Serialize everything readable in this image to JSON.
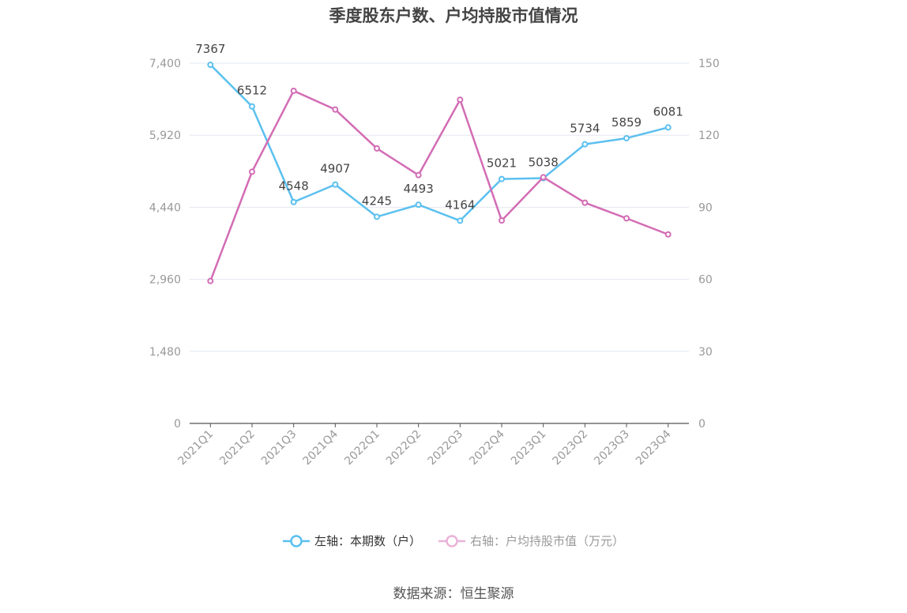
{
  "chart_data": {
    "type": "line",
    "title": "季度股东户数、户均持股市值情况",
    "categories": [
      "2021Q1",
      "2021Q2",
      "2021Q3",
      "2021Q4",
      "2022Q1",
      "2022Q2",
      "2022Q3",
      "2022Q4",
      "2023Q1",
      "2023Q2",
      "2023Q3",
      "2023Q4"
    ],
    "y_left": {
      "ylim": [
        0,
        7400
      ],
      "ticks": [
        0,
        1480,
        2960,
        4440,
        5920,
        7400
      ],
      "tick_labels": [
        "0",
        "1,480",
        "2,960",
        "4,440",
        "5,920",
        "7,400"
      ]
    },
    "y_right": {
      "ylim": [
        0,
        150
      ],
      "ticks": [
        0,
        30,
        60,
        90,
        120,
        150
      ],
      "tick_labels": [
        "0",
        "30",
        "60",
        "90",
        "120",
        "150"
      ]
    },
    "grid": true,
    "legend_position": "bottom",
    "series": [
      {
        "name": "左轴：本期数（户）",
        "axis": "left",
        "color": "#5bc0ef",
        "values": [
          7367,
          6512,
          4548,
          4907,
          4245,
          4493,
          4164,
          5021,
          5038,
          5734,
          5859,
          6081
        ],
        "labels": [
          "7367",
          "6512",
          "4548",
          "4907",
          "4245",
          "4493",
          "4164",
          "5021",
          "5038",
          "5734",
          "5859",
          "6081"
        ]
      },
      {
        "name": "右轴：户均持股市值（万元）",
        "axis": "right",
        "color": "#d36cb4",
        "values": [
          59.3,
          104.8,
          138.5,
          130.7,
          114.5,
          103.4,
          134.8,
          84.5,
          102.5,
          91.9,
          85.4,
          78.7
        ]
      }
    ]
  },
  "source_text": "数据来源：恒生聚源",
  "colors": {
    "grid": "#e3e8f0",
    "axis": "#555555",
    "tick_text": "#999999",
    "label_text": "#444444"
  }
}
